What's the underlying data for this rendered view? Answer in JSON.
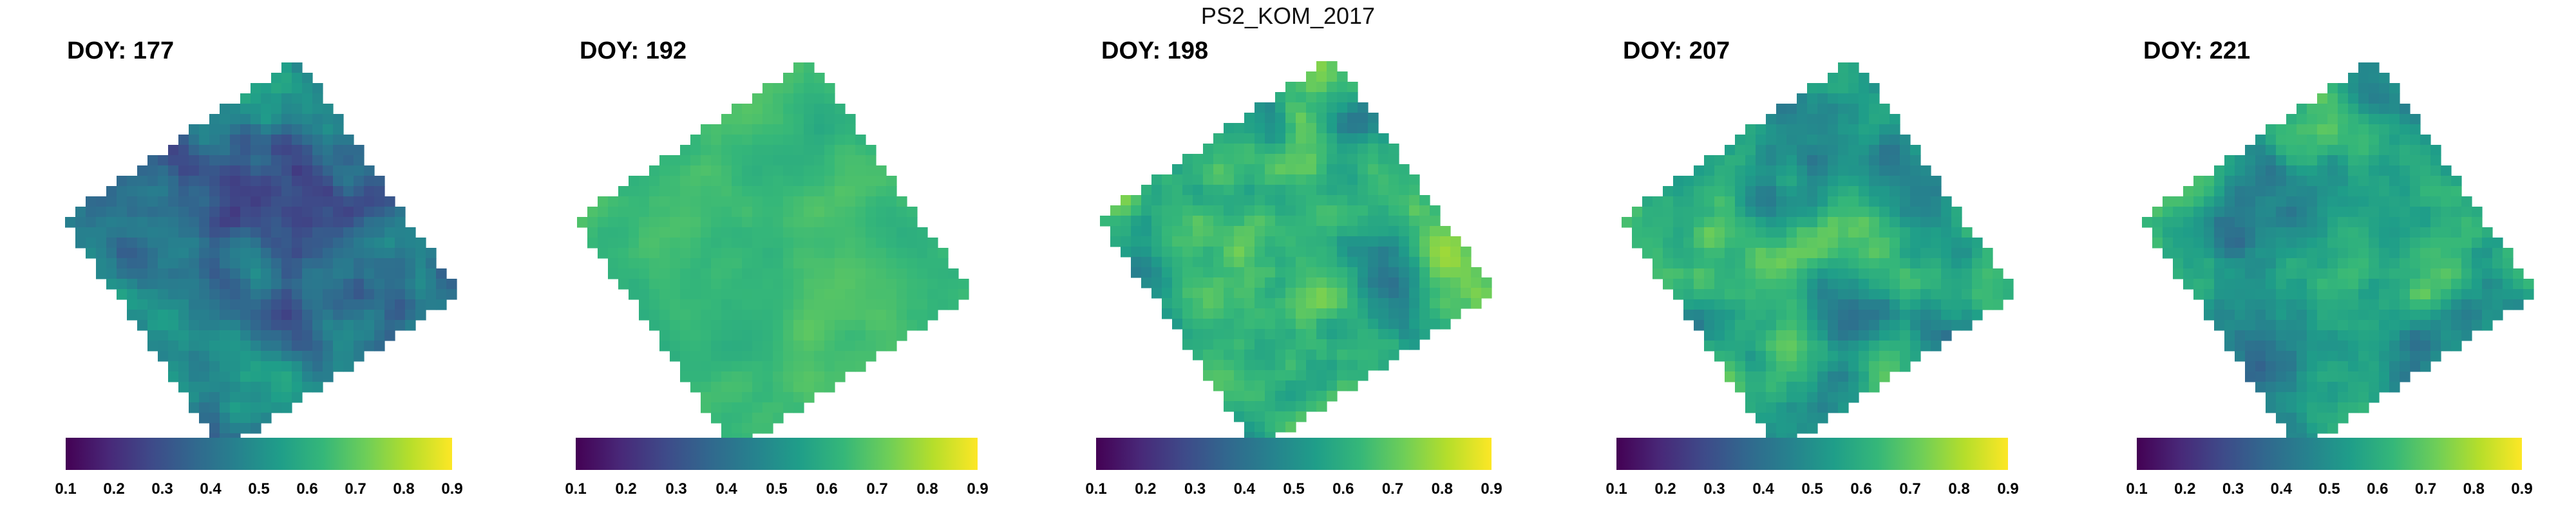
{
  "figure": {
    "title": "PS2_KOM_2017"
  },
  "colormap": [
    "#440154",
    "#482878",
    "#3e4a89",
    "#31688e",
    "#26828e",
    "#1f9e89",
    "#35b779",
    "#6ece58",
    "#b5de2b",
    "#fde725"
  ],
  "chart_data": [
    {
      "type": "heatmap",
      "title": "DOY: 177",
      "colorbar": {
        "ticks": [
          "0.1",
          "0.2",
          "0.3",
          "0.4",
          "0.5",
          "0.6",
          "0.7",
          "0.8",
          "0.9"
        ],
        "range": [
          0.1,
          0.9
        ]
      },
      "typical_value_range": [
        0.15,
        0.7
      ]
    },
    {
      "type": "heatmap",
      "title": "DOY: 192",
      "colorbar": {
        "ticks": [
          "0.1",
          "0.2",
          "0.3",
          "0.4",
          "0.5",
          "0.6",
          "0.7",
          "0.8",
          "0.9"
        ],
        "range": [
          0.1,
          0.9
        ]
      },
      "typical_value_range": [
        0.55,
        0.72
      ]
    },
    {
      "type": "heatmap",
      "title": "DOY: 198",
      "colorbar": {
        "ticks": [
          "0.1",
          "0.2",
          "0.3",
          "0.4",
          "0.5",
          "0.6",
          "0.7",
          "0.8",
          "0.9"
        ],
        "range": [
          0.1,
          0.9
        ]
      },
      "typical_value_range": [
        0.3,
        0.85
      ]
    },
    {
      "type": "heatmap",
      "title": "DOY: 207",
      "colorbar": {
        "ticks": [
          "0.1",
          "0.2",
          "0.3",
          "0.4",
          "0.5",
          "0.6",
          "0.7",
          "0.8",
          "0.9"
        ],
        "range": [
          0.1,
          0.9
        ]
      },
      "typical_value_range": [
        0.3,
        0.8
      ]
    },
    {
      "type": "heatmap",
      "title": "DOY: 221",
      "colorbar": {
        "ticks": [
          "0.1",
          "0.2",
          "0.3",
          "0.4",
          "0.5",
          "0.6",
          "0.7",
          "0.8",
          "0.9"
        ],
        "range": [
          0.1,
          0.9
        ]
      },
      "typical_value_range": [
        0.3,
        0.8
      ]
    }
  ]
}
